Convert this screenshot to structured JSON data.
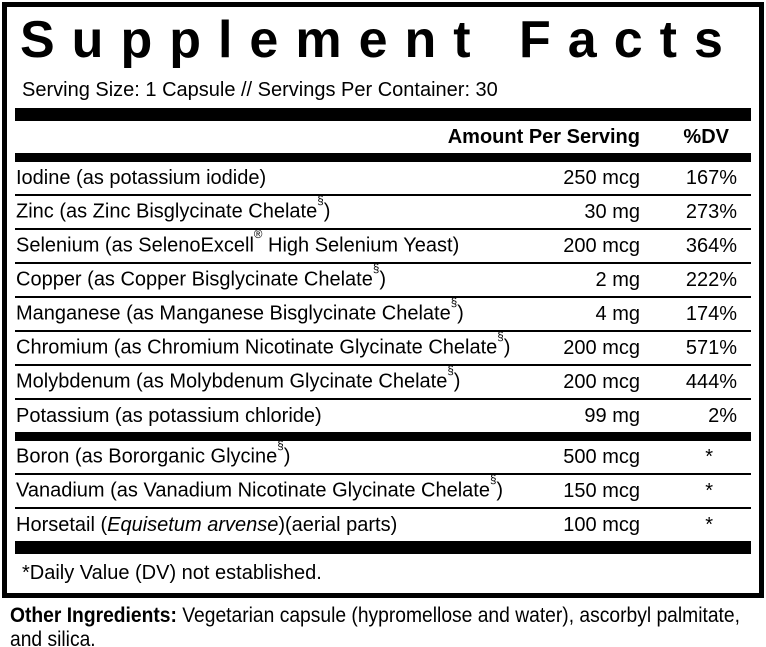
{
  "colors": {
    "ink": "#000000",
    "paper": "#ffffff"
  },
  "panel": {
    "title": "Supplement Facts",
    "serving_info": "Serving Size: 1 Capsule // Servings Per Container: 30",
    "columns": {
      "amount": "Amount Per Serving",
      "dv": "%DV"
    },
    "groups": [
      {
        "rows": [
          {
            "name_parts": [
              {
                "t": "Iodine (as potassium iodide)"
              }
            ],
            "amount": "250 mcg",
            "dv": "167%"
          },
          {
            "name_parts": [
              {
                "t": "Zinc (as Zinc Bisglycinate Chelate"
              },
              {
                "t": "§",
                "sup": true
              },
              {
                "t": ")"
              }
            ],
            "amount": "30 mg",
            "dv": "273%"
          },
          {
            "name_parts": [
              {
                "t": "Selenium (as SelenoExcell"
              },
              {
                "t": "®",
                "sup": true
              },
              {
                "t": " High Selenium Yeast)"
              }
            ],
            "amount": "200 mcg",
            "dv": "364%"
          },
          {
            "name_parts": [
              {
                "t": "Copper (as Copper Bisglycinate Chelate"
              },
              {
                "t": "§",
                "sup": true
              },
              {
                "t": ")"
              }
            ],
            "amount": "2 mg",
            "dv": "222%"
          },
          {
            "name_parts": [
              {
                "t": "Manganese (as Manganese Bisglycinate Chelate"
              },
              {
                "t": "§",
                "sup": true
              },
              {
                "t": ")"
              }
            ],
            "amount": "4 mg",
            "dv": "174%"
          },
          {
            "name_parts": [
              {
                "t": "Chromium (as Chromium Nicotinate Glycinate Chelate"
              },
              {
                "t": "§",
                "sup": true
              },
              {
                "t": ")"
              }
            ],
            "amount": "200 mcg",
            "dv": "571%"
          },
          {
            "name_parts": [
              {
                "t": "Molybdenum (as Molybdenum Glycinate Chelate"
              },
              {
                "t": "§",
                "sup": true
              },
              {
                "t": ")"
              }
            ],
            "amount": "200 mcg",
            "dv": "444%"
          },
          {
            "name_parts": [
              {
                "t": "Potassium (as potassium chloride)"
              }
            ],
            "amount": "99 mg",
            "dv": "2%"
          }
        ]
      },
      {
        "rows": [
          {
            "name_parts": [
              {
                "t": "Boron (as Bororganic Glycine"
              },
              {
                "t": "§",
                "sup": true
              },
              {
                "t": ")"
              }
            ],
            "amount": "500 mcg",
            "dv": "*"
          },
          {
            "name_parts": [
              {
                "t": "Vanadium (as Vanadium Nicotinate Glycinate Chelate"
              },
              {
                "t": "§",
                "sup": true
              },
              {
                "t": ")"
              }
            ],
            "amount": "150 mcg",
            "dv": "*"
          },
          {
            "name_parts": [
              {
                "t": "Horsetail ("
              },
              {
                "t": "Equisetum arvense",
                "i": true
              },
              {
                "t": ")(aerial parts)"
              }
            ],
            "amount": "100 mcg",
            "dv": "*"
          }
        ]
      }
    ],
    "footnote": "*Daily Value (DV) not established."
  },
  "other_ingredients": {
    "label": "Other Ingredients:",
    "text": " Vegetarian capsule (hypromellose and water), ascorbyl palmitate, and silica."
  }
}
